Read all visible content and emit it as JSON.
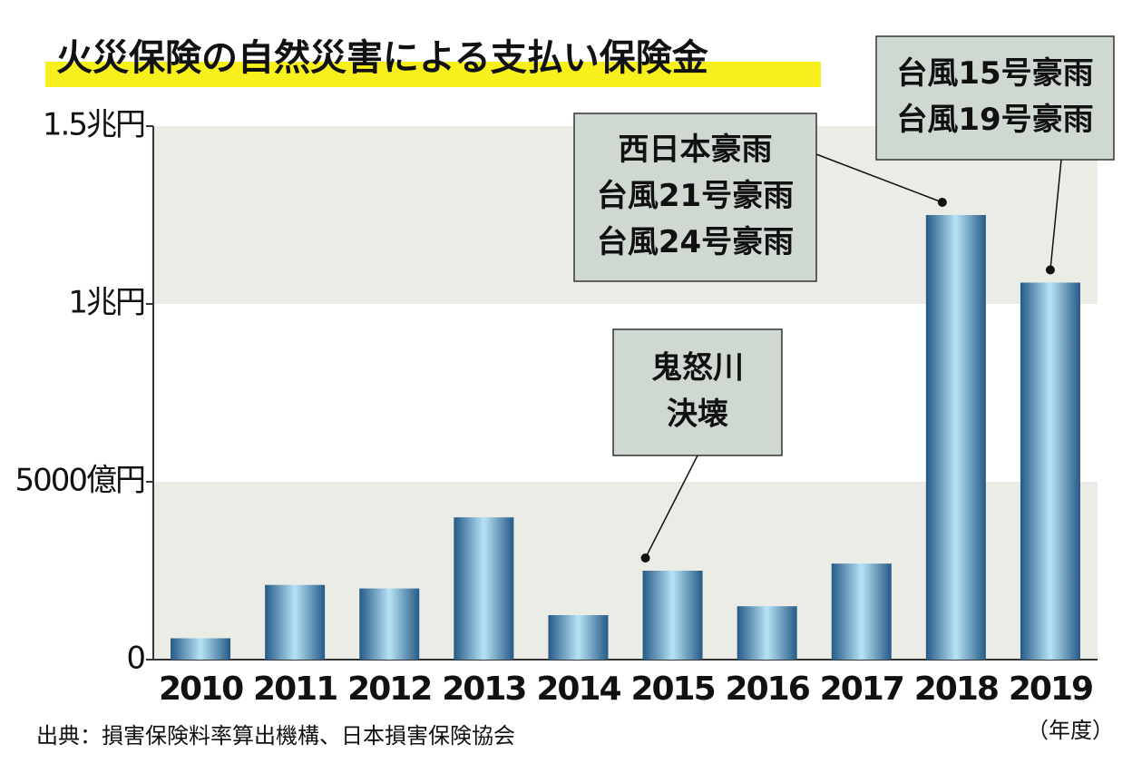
{
  "chart_data": {
    "type": "bar",
    "title": "火災保険の自然災害による支払い保険金",
    "source": "出典：損害保険料率算出機構、日本損害保険協会",
    "x_label": "（年度）",
    "categories": [
      "2010",
      "2011",
      "2012",
      "2013",
      "2014",
      "2015",
      "2016",
      "2017",
      "2018",
      "2019"
    ],
    "values": [
      600,
      2100,
      2000,
      4000,
      1250,
      2500,
      1500,
      2700,
      12500,
      10600
    ],
    "color": "#245a86",
    "ylim": [
      0,
      15000
    ],
    "yticks": [
      0,
      {
        "value": 5000,
        "label": "5000億円"
      },
      {
        "value": 10000,
        "label": "1兆円"
      },
      {
        "value": 15000,
        "label": "1.5兆円"
      }
    ],
    "annotations": [
      {
        "category": "2015",
        "lines": [
          "鬼怒川",
          "決壊"
        ]
      },
      {
        "category": "2018",
        "lines": [
          "西日本豪雨",
          "台風21号豪雨",
          "台風24号豪雨"
        ]
      },
      {
        "category": "2019",
        "lines": [
          "台風15号豪雨",
          "台風19号豪雨"
        ]
      }
    ]
  }
}
